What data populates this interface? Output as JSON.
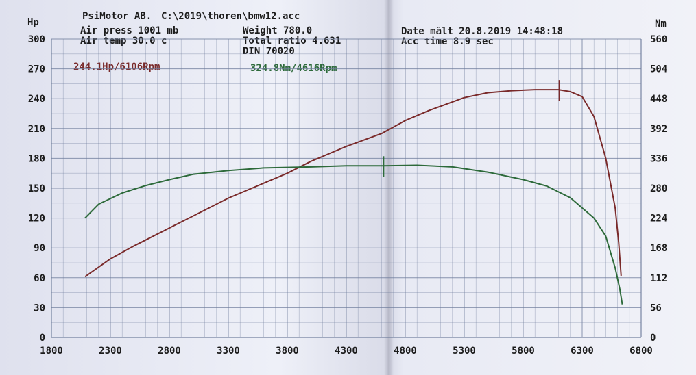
{
  "header": {
    "brand": "PsiMotor AB.",
    "file": "C:\\2019\\thoren\\bmw12.acc",
    "air_press": "Air press  1001 mb",
    "air_temp": "Air temp  30.0 c",
    "weight": "Weight   780.0",
    "total_ratio": "Total ratio 4.631",
    "din": "DIN 70020",
    "date": "Date mält 20.8.2019 14:48:18",
    "acc_time": "Acc time  8.9 sec"
  },
  "peaks": {
    "power": "244.1Hp/6106Rpm",
    "torque": "324.8Nm/4616Rpm"
  },
  "colors": {
    "power": "#7a2a2a",
    "torque": "#2d6a3a",
    "grid": "#6f7d9c",
    "text": "#1c1c1c"
  },
  "chart_data": {
    "type": "line",
    "xlabel": "",
    "y_left_unit": "Hp",
    "y_right_unit": "Nm",
    "x_ticks": [
      "1800",
      "2300",
      "2800",
      "3300",
      "3800",
      "4300",
      "4800",
      "5300",
      "5800",
      "6300",
      "6800"
    ],
    "y_left_ticks": [
      "0",
      "30",
      "60",
      "90",
      "120",
      "150",
      "180",
      "210",
      "240",
      "270",
      "300"
    ],
    "y_right_ticks": [
      "0",
      "56",
      "112",
      "168",
      "224",
      "280",
      "336",
      "392",
      "448",
      "504",
      "560"
    ],
    "xlim": [
      1800,
      6800
    ],
    "ylim_left": [
      0,
      300
    ],
    "ylim_right": [
      0,
      560
    ],
    "grid": true,
    "series": [
      {
        "name": "Hp",
        "axis": "left",
        "color": "#7a2a2a",
        "points": [
          [
            2085,
            61
          ],
          [
            2300,
            79
          ],
          [
            2500,
            92
          ],
          [
            2800,
            110
          ],
          [
            3100,
            128
          ],
          [
            3300,
            140
          ],
          [
            3600,
            155
          ],
          [
            3800,
            165
          ],
          [
            4000,
            177
          ],
          [
            4300,
            192
          ],
          [
            4600,
            205
          ],
          [
            4800,
            218
          ],
          [
            5000,
            228
          ],
          [
            5300,
            241
          ],
          [
            5500,
            246
          ],
          [
            5700,
            248
          ],
          [
            5900,
            249
          ],
          [
            6100,
            249
          ],
          [
            6200,
            247
          ],
          [
            6300,
            242
          ],
          [
            6400,
            222
          ],
          [
            6500,
            180
          ],
          [
            6580,
            130
          ],
          [
            6610,
            95
          ],
          [
            6630,
            62
          ]
        ]
      },
      {
        "name": "Nm",
        "axis": "right",
        "color": "#2d6a3a",
        "points": [
          [
            2085,
            224
          ],
          [
            2200,
            250
          ],
          [
            2400,
            271
          ],
          [
            2600,
            285
          ],
          [
            2800,
            296
          ],
          [
            3000,
            306
          ],
          [
            3300,
            313
          ],
          [
            3600,
            318
          ],
          [
            4000,
            320
          ],
          [
            4300,
            322
          ],
          [
            4616,
            322
          ],
          [
            4900,
            323
          ],
          [
            5200,
            320
          ],
          [
            5500,
            310
          ],
          [
            5800,
            296
          ],
          [
            6000,
            284
          ],
          [
            6200,
            262
          ],
          [
            6400,
            224
          ],
          [
            6500,
            190
          ],
          [
            6580,
            130
          ],
          [
            6620,
            90
          ],
          [
            6640,
            62
          ]
        ]
      }
    ],
    "markers": [
      {
        "x": 4616,
        "axis": "right",
        "y": 322
      },
      {
        "x": 6106,
        "axis": "left",
        "y": 249
      }
    ]
  }
}
